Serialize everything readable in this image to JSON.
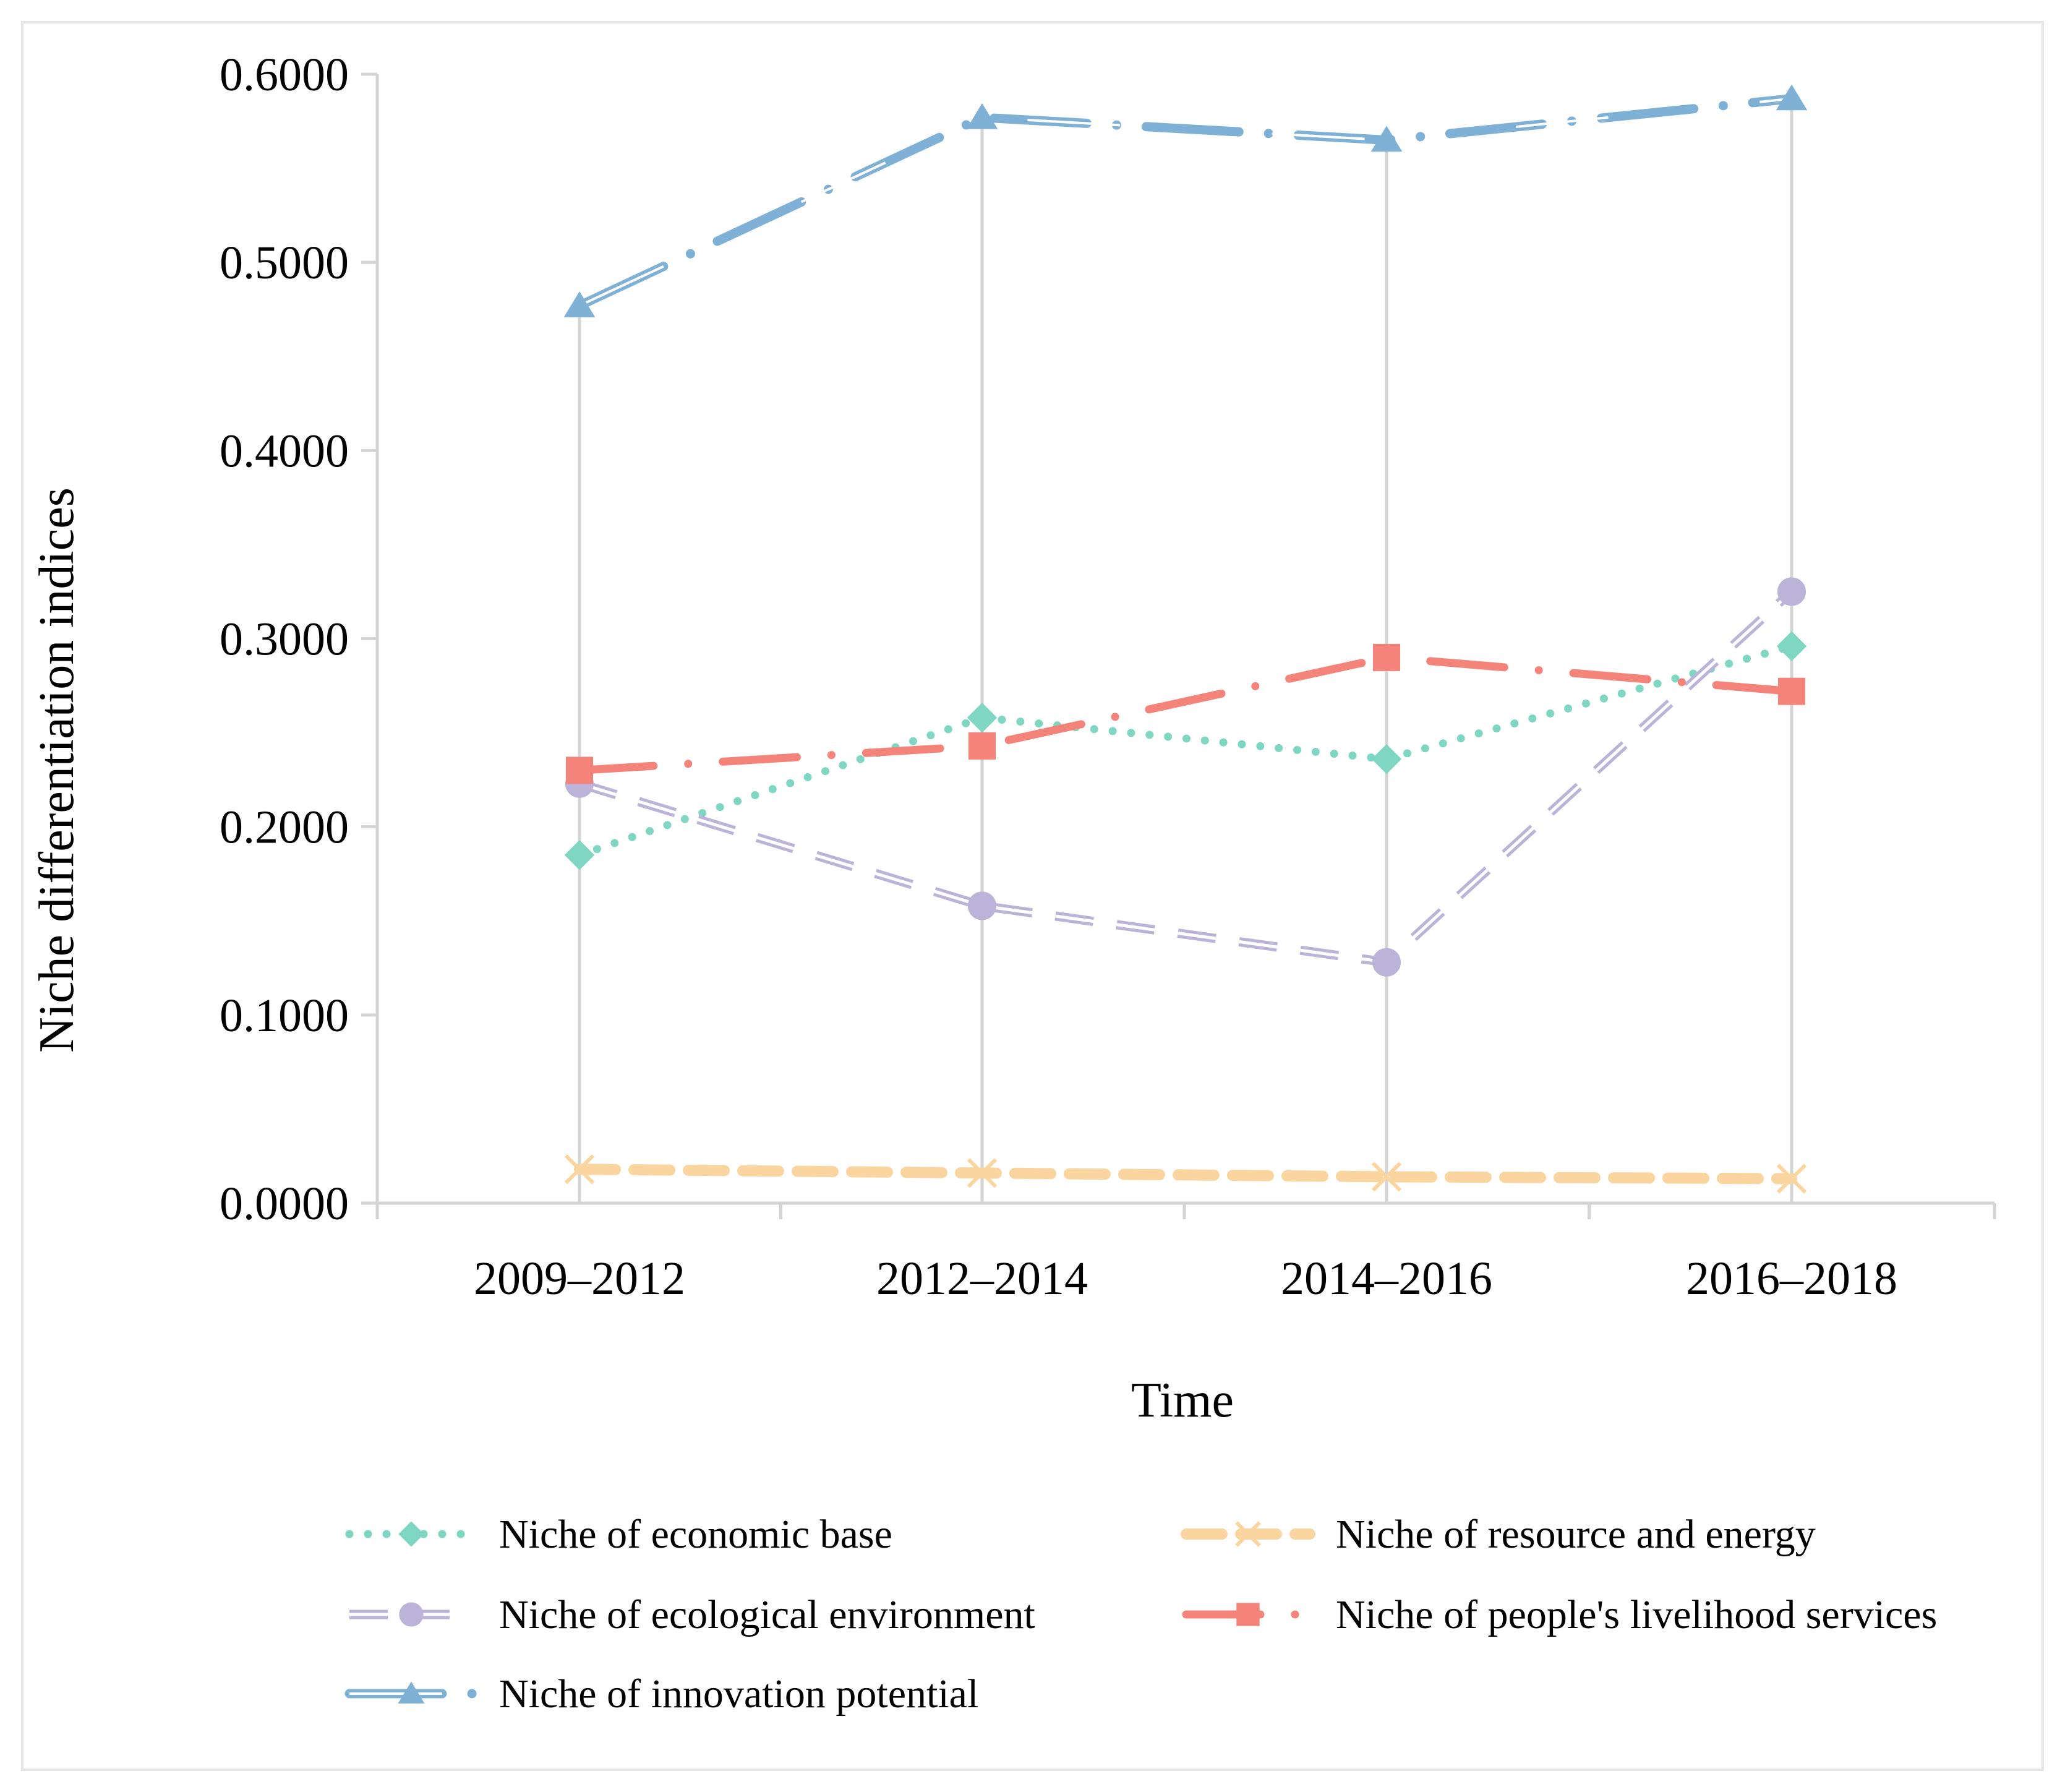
{
  "chart_data": {
    "type": "line",
    "title": "",
    "xlabel": "Time",
    "ylabel": "Niche differentiation indices",
    "categories": [
      "2009–2012",
      "2012–2014",
      "2014–2016",
      "2016–2018"
    ],
    "y_ticks": [
      "0.0000",
      "0.1000",
      "0.2000",
      "0.3000",
      "0.4000",
      "0.5000",
      "0.6000"
    ],
    "ylim": [
      0,
      0.6
    ],
    "grid": "vertical drop lines at categories",
    "legend_position": "bottom",
    "series": [
      {
        "name": "Niche of economic base",
        "values": [
          0.185,
          0.258,
          0.236,
          0.296
        ],
        "color": "#7fd6c2",
        "marker": "diamond",
        "dash": "dotted"
      },
      {
        "name": "Niche of ecological environment",
        "values": [
          0.223,
          0.158,
          0.128,
          0.325
        ],
        "color": "#bbb3d8",
        "marker": "circle",
        "dash": "dashed-double"
      },
      {
        "name": "Niche of  innovation potential",
        "values": [
          0.477,
          0.577,
          0.565,
          0.587
        ],
        "color": "#7fb0d6",
        "marker": "triangle",
        "dash": "dash-dot-double"
      },
      {
        "name": "Niche of resource and energy",
        "values": [
          0.018,
          0.016,
          0.014,
          0.013
        ],
        "color": "#fbd5a0",
        "marker": "x",
        "dash": "dashed"
      },
      {
        "name": "Niche of people's livelihood services",
        "values": [
          0.23,
          0.243,
          0.29,
          0.272
        ],
        "color": "#f4837a",
        "marker": "square",
        "dash": "dash-dot"
      }
    ]
  }
}
